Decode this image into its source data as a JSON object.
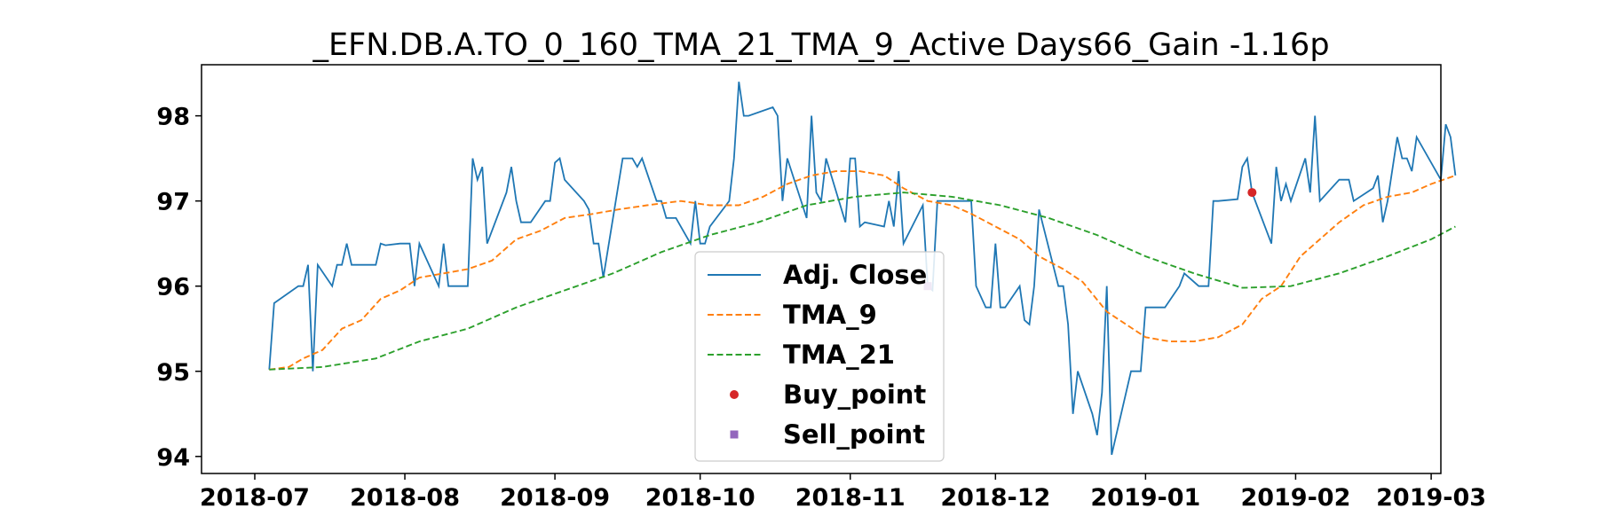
{
  "chart_data": {
    "type": "line",
    "title": "_EFN.DB.A.TO_0_160_TMA_21_TMA_9_Active Days66_Gain  -1.16p",
    "xlabel": "",
    "ylabel": "",
    "x_range": [
      "2018-06-20",
      "2019-03-03"
    ],
    "ylim": [
      93.8,
      98.6
    ],
    "x_ticks": [
      {
        "date": "2018-07-01",
        "label": "2018-07"
      },
      {
        "date": "2018-08-01",
        "label": "2018-08"
      },
      {
        "date": "2018-09-01",
        "label": "2018-09"
      },
      {
        "date": "2018-10-01",
        "label": "2018-10"
      },
      {
        "date": "2018-11-01",
        "label": "2018-11"
      },
      {
        "date": "2018-12-01",
        "label": "2018-12"
      },
      {
        "date": "2019-01-01",
        "label": "2019-01"
      },
      {
        "date": "2019-02-01",
        "label": "2019-02"
      },
      {
        "date": "2019-03-01",
        "label": "2019-03"
      }
    ],
    "y_ticks": [
      {
        "value": 94,
        "label": "94"
      },
      {
        "value": 95,
        "label": "95"
      },
      {
        "value": 96,
        "label": "96"
      },
      {
        "value": 97,
        "label": "97"
      },
      {
        "value": 98,
        "label": "98"
      }
    ],
    "grid": false,
    "legend": {
      "position": "center-bottom"
    },
    "series": [
      {
        "name": "Adj. Close",
        "style": "solid",
        "color": "#1f77b4",
        "points": [
          [
            "2018-07-04",
            95.02
          ],
          [
            "2018-07-05",
            95.8
          ],
          [
            "2018-07-10",
            96.0
          ],
          [
            "2018-07-11",
            96.0
          ],
          [
            "2018-07-12",
            96.25
          ],
          [
            "2018-07-13",
            95.0
          ],
          [
            "2018-07-14",
            96.25
          ],
          [
            "2018-07-17",
            96.0
          ],
          [
            "2018-07-18",
            96.25
          ],
          [
            "2018-07-19",
            96.25
          ],
          [
            "2018-07-20",
            96.5
          ],
          [
            "2018-07-21",
            96.25
          ],
          [
            "2018-07-26",
            96.25
          ],
          [
            "2018-07-27",
            96.5
          ],
          [
            "2018-07-28",
            96.48
          ],
          [
            "2018-07-31",
            96.5
          ],
          [
            "2018-08-02",
            96.5
          ],
          [
            "2018-08-03",
            96.0
          ],
          [
            "2018-08-04",
            96.5
          ],
          [
            "2018-08-08",
            96.0
          ],
          [
            "2018-08-09",
            96.5
          ],
          [
            "2018-08-10",
            96.0
          ],
          [
            "2018-08-14",
            96.0
          ],
          [
            "2018-08-15",
            97.5
          ],
          [
            "2018-08-16",
            97.25
          ],
          [
            "2018-08-17",
            97.4
          ],
          [
            "2018-08-18",
            96.5
          ],
          [
            "2018-08-22",
            97.1
          ],
          [
            "2018-08-23",
            97.4
          ],
          [
            "2018-08-24",
            97.0
          ],
          [
            "2018-08-25",
            96.75
          ],
          [
            "2018-08-27",
            96.75
          ],
          [
            "2018-08-30",
            97.0
          ],
          [
            "2018-08-31",
            97.0
          ],
          [
            "2018-09-01",
            97.45
          ],
          [
            "2018-09-02",
            97.5
          ],
          [
            "2018-09-03",
            97.25
          ],
          [
            "2018-09-07",
            97.0
          ],
          [
            "2018-09-08",
            96.9
          ],
          [
            "2018-09-09",
            96.5
          ],
          [
            "2018-09-10",
            96.5
          ],
          [
            "2018-09-11",
            96.1
          ],
          [
            "2018-09-15",
            97.5
          ],
          [
            "2018-09-17",
            97.5
          ],
          [
            "2018-09-18",
            97.4
          ],
          [
            "2018-09-19",
            97.5
          ],
          [
            "2018-09-22",
            97.0
          ],
          [
            "2018-09-23",
            97.0
          ],
          [
            "2018-09-24",
            96.8
          ],
          [
            "2018-09-26",
            96.8
          ],
          [
            "2018-09-28",
            96.6
          ],
          [
            "2018-09-29",
            96.5
          ],
          [
            "2018-09-30",
            97.0
          ],
          [
            "2018-10-01",
            96.5
          ],
          [
            "2018-10-02",
            96.5
          ],
          [
            "2018-10-03",
            96.7
          ],
          [
            "2018-10-07",
            97.0
          ],
          [
            "2018-10-08",
            97.5
          ],
          [
            "2018-10-09",
            98.4
          ],
          [
            "2018-10-10",
            98.0
          ],
          [
            "2018-10-11",
            98.0
          ],
          [
            "2018-10-16",
            98.1
          ],
          [
            "2018-10-17",
            98.0
          ],
          [
            "2018-10-18",
            97.0
          ],
          [
            "2018-10-19",
            97.5
          ],
          [
            "2018-10-23",
            96.8
          ],
          [
            "2018-10-24",
            98.0
          ],
          [
            "2018-10-25",
            97.1
          ],
          [
            "2018-10-26",
            97.0
          ],
          [
            "2018-10-27",
            97.5
          ],
          [
            "2018-10-31",
            96.75
          ],
          [
            "2018-11-01",
            97.5
          ],
          [
            "2018-11-02",
            97.5
          ],
          [
            "2018-11-03",
            96.7
          ],
          [
            "2018-11-04",
            96.75
          ],
          [
            "2018-11-08",
            96.7
          ],
          [
            "2018-11-09",
            97.0
          ],
          [
            "2018-11-10",
            96.7
          ],
          [
            "2018-11-11",
            97.35
          ],
          [
            "2018-11-12",
            96.5
          ],
          [
            "2018-11-16",
            96.95
          ],
          [
            "2018-11-17",
            96.0
          ],
          [
            "2018-11-18",
            95.95
          ],
          [
            "2018-11-19",
            97.0
          ],
          [
            "2018-11-26",
            97.0
          ],
          [
            "2018-11-27",
            96.0
          ],
          [
            "2018-11-29",
            95.75
          ],
          [
            "2018-11-30",
            95.75
          ],
          [
            "2018-12-01",
            96.5
          ],
          [
            "2018-12-02",
            95.75
          ],
          [
            "2018-12-03",
            95.75
          ],
          [
            "2018-12-06",
            96.0
          ],
          [
            "2018-12-07",
            95.6
          ],
          [
            "2018-12-08",
            95.55
          ],
          [
            "2018-12-09",
            96.0
          ],
          [
            "2018-12-10",
            96.9
          ],
          [
            "2018-12-14",
            96.0
          ],
          [
            "2018-12-15",
            96.0
          ],
          [
            "2018-12-16",
            95.55
          ],
          [
            "2018-12-17",
            94.5
          ],
          [
            "2018-12-18",
            95.0
          ],
          [
            "2018-12-21",
            94.5
          ],
          [
            "2018-12-22",
            94.25
          ],
          [
            "2018-12-23",
            94.75
          ],
          [
            "2018-12-24",
            96.0
          ],
          [
            "2018-12-25",
            94.02
          ],
          [
            "2018-12-29",
            95.0
          ],
          [
            "2018-12-31",
            95.0
          ],
          [
            "2019-01-01",
            95.75
          ],
          [
            "2019-01-05",
            95.75
          ],
          [
            "2019-01-08",
            96.0
          ],
          [
            "2019-01-09",
            96.15
          ],
          [
            "2019-01-12",
            96.0
          ],
          [
            "2019-01-13",
            96.0
          ],
          [
            "2019-01-14",
            96.0
          ],
          [
            "2019-01-15",
            97.0
          ],
          [
            "2019-01-16",
            97.0
          ],
          [
            "2019-01-20",
            97.02
          ],
          [
            "2019-01-21",
            97.4
          ],
          [
            "2019-01-22",
            97.5
          ],
          [
            "2019-01-23",
            97.1
          ],
          [
            "2019-01-27",
            96.5
          ],
          [
            "2019-01-28",
            97.4
          ],
          [
            "2019-01-29",
            97.0
          ],
          [
            "2019-01-30",
            97.2
          ],
          [
            "2019-01-31",
            97.0
          ],
          [
            "2019-02-03",
            97.5
          ],
          [
            "2019-02-04",
            97.1
          ],
          [
            "2019-02-05",
            98.0
          ],
          [
            "2019-02-06",
            97.0
          ],
          [
            "2019-02-10",
            97.25
          ],
          [
            "2019-02-12",
            97.25
          ],
          [
            "2019-02-13",
            97.0
          ],
          [
            "2019-02-17",
            97.15
          ],
          [
            "2019-02-18",
            97.3
          ],
          [
            "2019-02-19",
            96.75
          ],
          [
            "2019-02-20",
            97.0
          ],
          [
            "2019-02-22",
            97.75
          ],
          [
            "2019-02-23",
            97.5
          ],
          [
            "2019-02-24",
            97.5
          ],
          [
            "2019-02-25",
            97.35
          ],
          [
            "2019-02-26",
            97.75
          ],
          [
            "2019-03-03",
            97.25
          ],
          [
            "2019-03-04",
            97.9
          ],
          [
            "2019-03-05",
            97.75
          ],
          [
            "2019-03-06",
            97.3
          ]
        ]
      },
      {
        "name": "TMA_9",
        "style": "dashed",
        "color": "#ff7f0e",
        "points": [
          [
            "2018-07-04",
            95.02
          ],
          [
            "2018-07-08",
            95.05
          ],
          [
            "2018-07-11",
            95.15
          ],
          [
            "2018-07-15",
            95.25
          ],
          [
            "2018-07-19",
            95.5
          ],
          [
            "2018-07-23",
            95.6
          ],
          [
            "2018-07-27",
            95.85
          ],
          [
            "2018-07-31",
            95.95
          ],
          [
            "2018-08-04",
            96.1
          ],
          [
            "2018-08-09",
            96.15
          ],
          [
            "2018-08-14",
            96.2
          ],
          [
            "2018-08-19",
            96.3
          ],
          [
            "2018-08-24",
            96.55
          ],
          [
            "2018-08-29",
            96.65
          ],
          [
            "2018-09-03",
            96.8
          ],
          [
            "2018-09-09",
            96.85
          ],
          [
            "2018-09-14",
            96.9
          ],
          [
            "2018-09-20",
            96.95
          ],
          [
            "2018-09-27",
            97.0
          ],
          [
            "2018-10-03",
            96.95
          ],
          [
            "2018-10-09",
            96.95
          ],
          [
            "2018-10-14",
            97.05
          ],
          [
            "2018-10-19",
            97.2
          ],
          [
            "2018-10-24",
            97.3
          ],
          [
            "2018-10-29",
            97.35
          ],
          [
            "2018-11-03",
            97.35
          ],
          [
            "2018-11-08",
            97.3
          ],
          [
            "2018-11-12",
            97.15
          ],
          [
            "2018-11-17",
            97.0
          ],
          [
            "2018-11-22",
            96.95
          ],
          [
            "2018-11-26",
            96.85
          ],
          [
            "2018-12-01",
            96.7
          ],
          [
            "2018-12-06",
            96.55
          ],
          [
            "2018-12-10",
            96.35
          ],
          [
            "2018-12-15",
            96.2
          ],
          [
            "2018-12-19",
            96.05
          ],
          [
            "2018-12-24",
            95.7
          ],
          [
            "2018-12-28",
            95.55
          ],
          [
            "2019-01-01",
            95.4
          ],
          [
            "2019-01-06",
            95.35
          ],
          [
            "2019-01-11",
            95.35
          ],
          [
            "2019-01-16",
            95.4
          ],
          [
            "2019-01-21",
            95.55
          ],
          [
            "2019-01-25",
            95.85
          ],
          [
            "2019-01-29",
            96.0
          ],
          [
            "2019-02-02",
            96.35
          ],
          [
            "2019-02-06",
            96.55
          ],
          [
            "2019-02-10",
            96.75
          ],
          [
            "2019-02-15",
            96.95
          ],
          [
            "2019-02-20",
            97.05
          ],
          [
            "2019-02-25",
            97.1
          ],
          [
            "2019-03-01",
            97.2
          ],
          [
            "2019-03-06",
            97.3
          ]
        ]
      },
      {
        "name": "TMA_21",
        "style": "dashed",
        "color": "#2ca02c",
        "points": [
          [
            "2018-07-04",
            95.02
          ],
          [
            "2018-07-15",
            95.05
          ],
          [
            "2018-07-26",
            95.15
          ],
          [
            "2018-08-04",
            95.35
          ],
          [
            "2018-08-14",
            95.5
          ],
          [
            "2018-08-24",
            95.75
          ],
          [
            "2018-09-03",
            95.95
          ],
          [
            "2018-09-13",
            96.15
          ],
          [
            "2018-09-23",
            96.4
          ],
          [
            "2018-10-03",
            96.6
          ],
          [
            "2018-10-13",
            96.75
          ],
          [
            "2018-10-23",
            96.95
          ],
          [
            "2018-11-02",
            97.05
          ],
          [
            "2018-11-12",
            97.1
          ],
          [
            "2018-11-22",
            97.05
          ],
          [
            "2018-12-02",
            96.95
          ],
          [
            "2018-12-12",
            96.8
          ],
          [
            "2018-12-22",
            96.6
          ],
          [
            "2019-01-01",
            96.35
          ],
          [
            "2019-01-11",
            96.15
          ],
          [
            "2019-01-21",
            95.98
          ],
          [
            "2019-01-31",
            96.0
          ],
          [
            "2019-02-10",
            96.15
          ],
          [
            "2019-02-20",
            96.35
          ],
          [
            "2019-03-01",
            96.55
          ],
          [
            "2019-03-06",
            96.7
          ]
        ]
      }
    ],
    "buy_points": [
      [
        "2019-01-23",
        97.1
      ]
    ],
    "sell_points": [
      [
        "2018-11-17",
        96.0
      ]
    ],
    "legend_entries": [
      {
        "label": "Adj. Close",
        "kind": "solid-line",
        "color": "#1f77b4"
      },
      {
        "label": "TMA_9",
        "kind": "dashed-line",
        "color": "#ff7f0e"
      },
      {
        "label": "TMA_21",
        "kind": "dashed-line",
        "color": "#2ca02c"
      },
      {
        "label": "Buy_point",
        "kind": "circle",
        "color": "#d62728"
      },
      {
        "label": "Sell_point",
        "kind": "square",
        "color": "#9467bd"
      }
    ]
  }
}
